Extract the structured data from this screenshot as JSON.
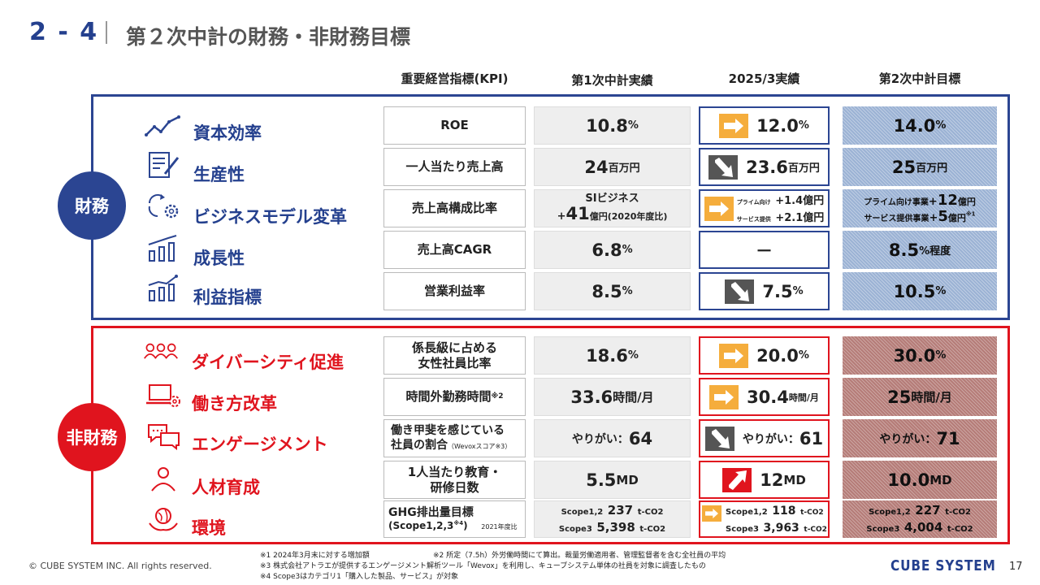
{
  "header": {
    "section_number": "2 - 4",
    "title": "第２次中計の財務・非財務目標"
  },
  "columns": {
    "kpi": "重要経営指標(KPI)",
    "result1": "第1次中計実績",
    "result2025": "2025/3実績",
    "target2": "第2次中計目標"
  },
  "groups": {
    "financial": "財務",
    "nonfinancial": "非財務"
  },
  "financial": [
    {
      "label": "資本効率",
      "kpi": "ROE",
      "r1_num": "10.8",
      "r1_unit": "%",
      "r2_num": "12.0",
      "r2_unit": "%",
      "target_num": "14.0",
      "target_unit": "%"
    },
    {
      "label": "生産性",
      "kpi": "一人当たり売上高",
      "r1_num": "24",
      "r1_unit": "百万円",
      "r2_num": "23.6",
      "r2_unit": "百万円",
      "target_num": "25",
      "target_unit": "百万円"
    },
    {
      "label": "ビジネスモデル変革",
      "kpi": "売上高構成比率",
      "r1_line1": "SIビジネス",
      "r1_prefix": "+",
      "r1_num": "41",
      "r1_unit": "億円(2020年度比)",
      "r2_a_label": "プライム向け",
      "r2_a_value": "+1.4億円",
      "r2_b_label": "サービス提供",
      "r2_b_value": "+2.1億円",
      "t_a_label": "プライム向け事業",
      "t_a_prefix": "+",
      "t_a_num": "12",
      "t_a_unit": "億円",
      "t_b_label": "サービス提供事業",
      "t_b_prefix": "+",
      "t_b_num": "5",
      "t_b_unit": "億円",
      "t_b_note": "※1"
    },
    {
      "label": "成長性",
      "kpi": "売上高CAGR",
      "r1_num": "6.8",
      "r1_unit": "%",
      "r2_text": "－",
      "target_num": "8.5",
      "target_unit": "%程度"
    },
    {
      "label": "利益指標",
      "kpi": "営業利益率",
      "r1_num": "8.5",
      "r1_unit": "%",
      "r2_num": "7.5",
      "r2_unit": "%",
      "target_num": "10.5",
      "target_unit": "%"
    }
  ],
  "nonfinancial": [
    {
      "label": "ダイバーシティ促進",
      "kpi_line1": "係長級に占める",
      "kpi_line2": "女性社員比率",
      "r1_num": "18.6",
      "r1_unit": "%",
      "r2_num": "20.0",
      "r2_unit": "%",
      "target_num": "30.0",
      "target_unit": "%"
    },
    {
      "label": "働き方改革",
      "kpi_line1": "時間外勤務時間",
      "kpi_note": "※2",
      "r1_num": "33.6",
      "r1_unit": "時間/月",
      "r2_num": "30.4",
      "r2_unit": "時間/月",
      "target_num": "25",
      "target_unit": "時間/月"
    },
    {
      "label": "エンゲージメント",
      "kpi_line1": "働き甲斐を感じている",
      "kpi_line2": "社員の割合",
      "kpi_small": "（Wevoxスコア※3）",
      "r1_prefix": "やりがい：",
      "r1_num": "64",
      "r2_prefix": "やりがい：",
      "r2_num": "61",
      "target_prefix": "やりがい：",
      "target_num": "71"
    },
    {
      "label": "人材育成",
      "kpi_line1": "1人当たり教育・",
      "kpi_line2": "研修日数",
      "r1_num": "5.5",
      "r1_unit": "MD",
      "r2_num": "12",
      "r2_unit": "MD",
      "target_num": "10.0",
      "target_unit": "MD"
    },
    {
      "label": "環境",
      "kpi_line1": "GHG排出量目標",
      "kpi_line2": "(Scope1,2,3",
      "kpi_note": "※4",
      "kpi_close": ")",
      "kpi_small": "2021年度比",
      "r1_a_label": "Scope1,2",
      "r1_a_num": "237",
      "r1_a_unit": "t-CO2",
      "r1_b_label": "Scope3",
      "r1_b_num": "5,398",
      "r1_b_unit": "t-CO2",
      "r2_a_label": "Scope1,2",
      "r2_a_num": "118",
      "r2_a_unit": "t-CO2",
      "r2_b_label": "Scope3",
      "r2_b_num": "3,963",
      "r2_b_unit": "t-CO2",
      "t_a_label": "Scope1,2",
      "t_a_num": "227",
      "t_a_unit": "t-CO2",
      "t_b_label": "Scope3",
      "t_b_num": "4,004",
      "t_b_unit": "t-CO2"
    }
  ],
  "footnotes": {
    "n1": "※1 2024年3月末に対する増加額",
    "n2": "※2 所定（7.5h）外労働時間にて算出。裁量労働適用者、管理監督者を含む全社員の平均",
    "n3": "※3 株式会社アトラエが提供するエンゲージメント解析ツール「Wevox」を利用し、キューブシステム単体の社員を対象に調査したもの",
    "n4": "※4 Scope3はカテゴリ1「購入した製品、サービス」が対象"
  },
  "footer": {
    "copyright": "© CUBE SYSTEM INC. All rights reserved.",
    "logo": "CUBE SYSTEM",
    "page": "17"
  },
  "colors": {
    "blue": "#2b4592",
    "red": "#e0141e",
    "arrow_orange": "#f5ad3c",
    "arrow_gray": "#555555"
  }
}
